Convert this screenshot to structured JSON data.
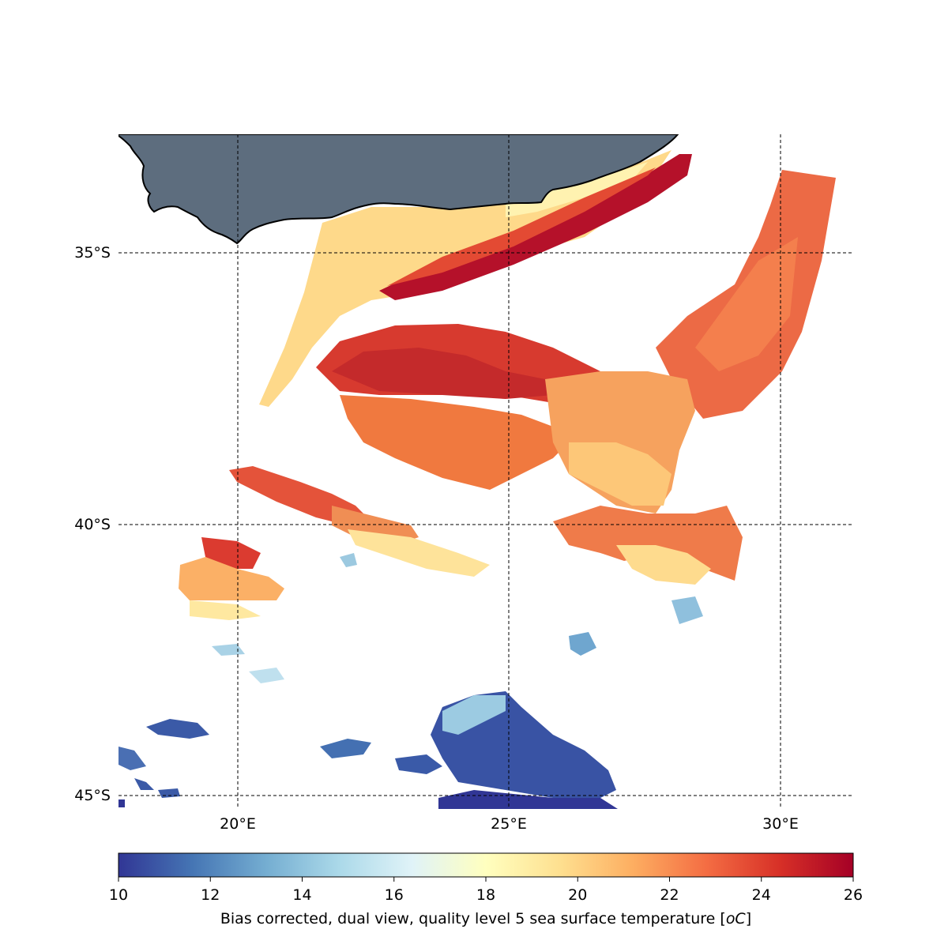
{
  "map": {
    "lat_labels": [
      "35°S",
      "40°S",
      "45°S"
    ],
    "lon_labels": [
      "20°E",
      "25°E",
      "30°E"
    ],
    "land_color": "#5d6d7e",
    "coastline_color": "#000000",
    "gridlines": true
  },
  "colorbar": {
    "min": 10,
    "max": 26,
    "ticks": [
      "10",
      "12",
      "14",
      "16",
      "18",
      "20",
      "22",
      "24",
      "26"
    ],
    "colormap": "RdYlBu_r",
    "stops": [
      "#313695",
      "#4575b4",
      "#74add1",
      "#abd9e9",
      "#e0f3f8",
      "#ffffbf",
      "#fee090",
      "#fdae61",
      "#f46d43",
      "#d73027",
      "#a50026"
    ],
    "label": "Bias corrected, dual view, quality level 5 sea surface temperature [",
    "label_unit_italic": "oC",
    "label_end": "]"
  }
}
